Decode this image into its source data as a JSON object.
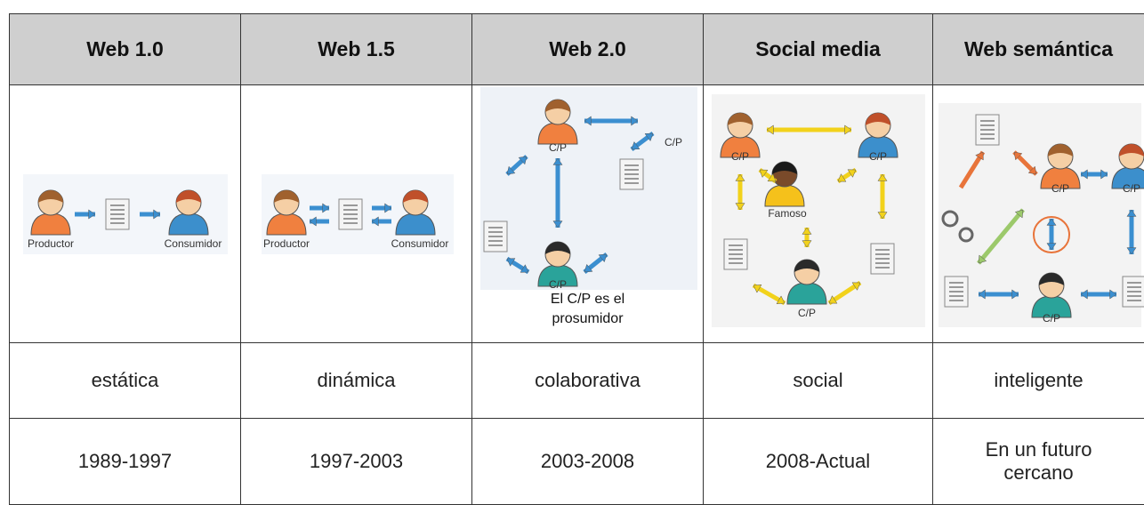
{
  "header": {
    "columns": [
      "Web 1.0",
      "Web 1.5",
      "Web 2.0",
      "Social media",
      "Web semántica"
    ]
  },
  "diagrams": [
    {
      "labels": [
        "Productor",
        "Consumidor"
      ]
    },
    {
      "labels": [
        "Productor",
        "Consumidor"
      ]
    },
    {
      "labels": [
        "C/P",
        "C/P",
        "C/P"
      ],
      "caption": "El C/P es el prosumidor"
    },
    {
      "labels": [
        "C/P",
        "C/P",
        "Famoso",
        "C/P"
      ]
    },
    {
      "labels": [
        "C/P",
        "C/P",
        "C/P"
      ]
    }
  ],
  "table": {
    "rows": [
      [
        "estática",
        "dinámica",
        "colaborativa",
        "social",
        "inteligente"
      ],
      [
        "1989-1997",
        "1997-2003",
        "2003-2008",
        "2008-Actual",
        "En un futuro cercano"
      ]
    ]
  }
}
